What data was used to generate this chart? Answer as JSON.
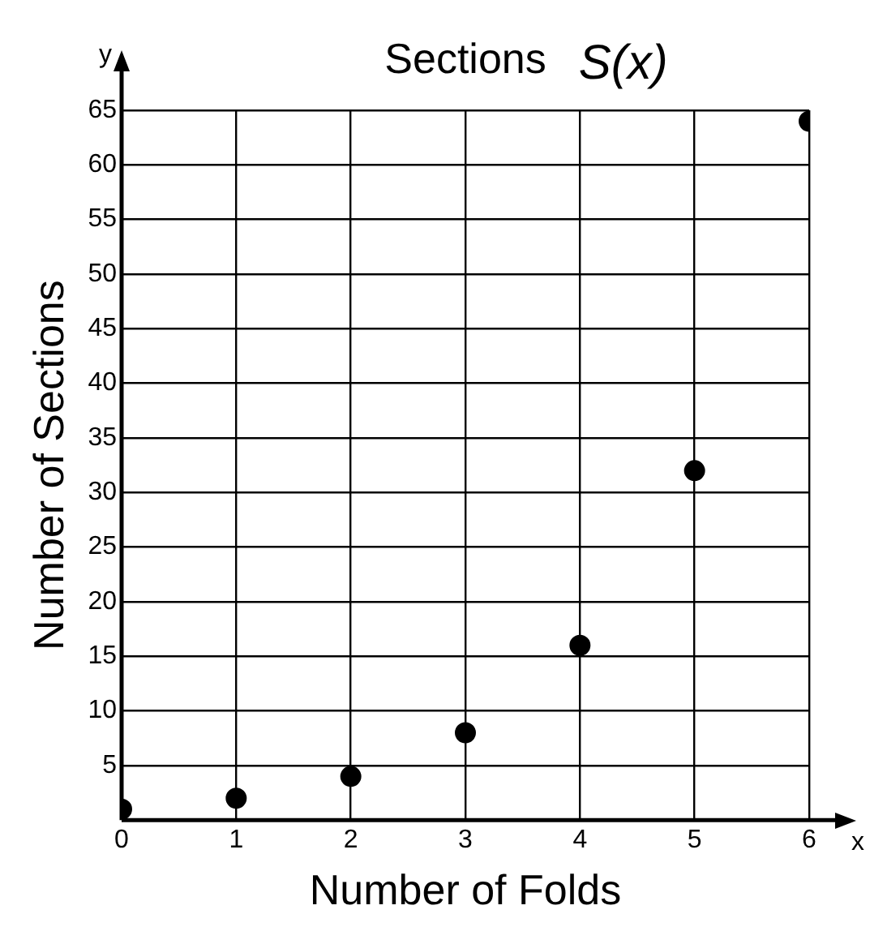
{
  "chart_data": {
    "type": "scatter",
    "title": "Sections",
    "xlabel": "Number of Folds",
    "ylabel": "Number of Sections",
    "annotations": [
      "S(x)",
      "y",
      "x"
    ],
    "x": [
      0,
      1,
      2,
      3,
      4,
      5,
      6
    ],
    "series": [
      {
        "color": "#000000",
        "values": [
          1,
          2,
          4,
          8,
          16,
          32,
          64
        ]
      }
    ],
    "xlim": [
      0,
      6
    ],
    "ylim": [
      0,
      65
    ],
    "xticks": [
      0,
      1,
      2,
      3,
      4,
      5,
      6
    ],
    "yticks": [
      {
        "value": 0,
        "label": null
      },
      5,
      10,
      15,
      20,
      25,
      30,
      35,
      40,
      45,
      50,
      55,
      60,
      65
    ],
    "grid": true,
    "legend": false,
    "marker": "circle"
  }
}
